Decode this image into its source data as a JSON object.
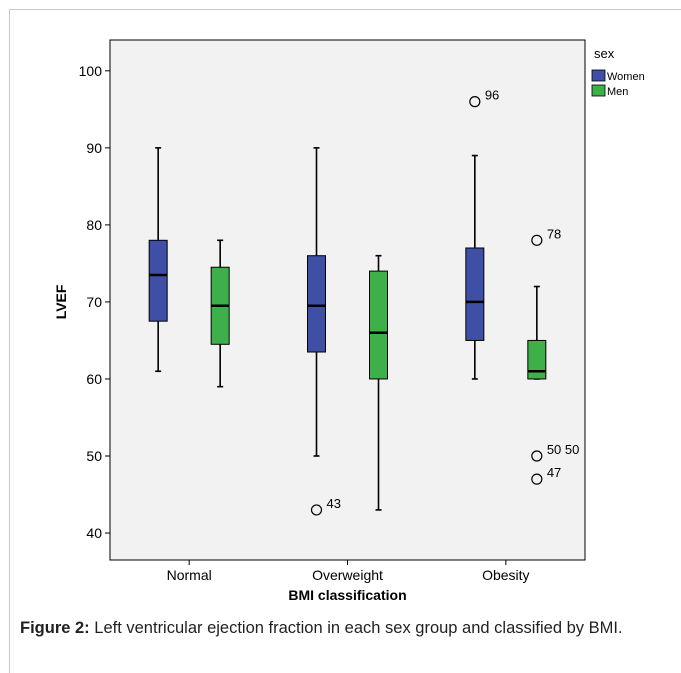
{
  "chart_data": {
    "type": "boxplot",
    "title": "",
    "xlabel": "BMI classification",
    "ylabel": "LVEF",
    "ylim": [
      36.5,
      104
    ],
    "yticks": [
      40,
      50,
      60,
      70,
      80,
      90,
      100
    ],
    "categories": [
      "Normal",
      "Overweight",
      "Obesity"
    ],
    "legend": {
      "title": "sex",
      "placement": "top-right"
    },
    "grid": false,
    "series": [
      {
        "name": "Women",
        "color": "#3f4fa6",
        "boxes": [
          {
            "min": 61,
            "q1": 67.5,
            "median": 73.5,
            "q3": 78,
            "max": 90,
            "outliers": []
          },
          {
            "min": 50,
            "q1": 63.5,
            "median": 69.5,
            "q3": 76,
            "max": 90,
            "outliers": [
              {
                "value": 43,
                "label": "43"
              }
            ]
          },
          {
            "min": 60,
            "q1": 65,
            "median": 70,
            "q3": 77,
            "max": 89,
            "outliers": [
              {
                "value": 96,
                "label": "96"
              }
            ]
          }
        ]
      },
      {
        "name": "Men",
        "color": "#3eb049",
        "boxes": [
          {
            "min": 59,
            "q1": 64.5,
            "median": 69.5,
            "q3": 74.5,
            "max": 78,
            "outliers": []
          },
          {
            "min": 43,
            "q1": 60,
            "median": 66,
            "q3": 74,
            "max": 76,
            "outliers": []
          },
          {
            "min": 60,
            "q1": 60,
            "median": 61,
            "q3": 65,
            "max": 72,
            "outliers": [
              {
                "value": 78,
                "label": "78"
              },
              {
                "value": 50,
                "label": "50 50"
              },
              {
                "value": 47,
                "label": "47"
              }
            ]
          }
        ]
      }
    ]
  },
  "caption": {
    "label": "Figure 2:",
    "text": " Left ventricular ejection fraction in each sex group and classified by BMI."
  }
}
